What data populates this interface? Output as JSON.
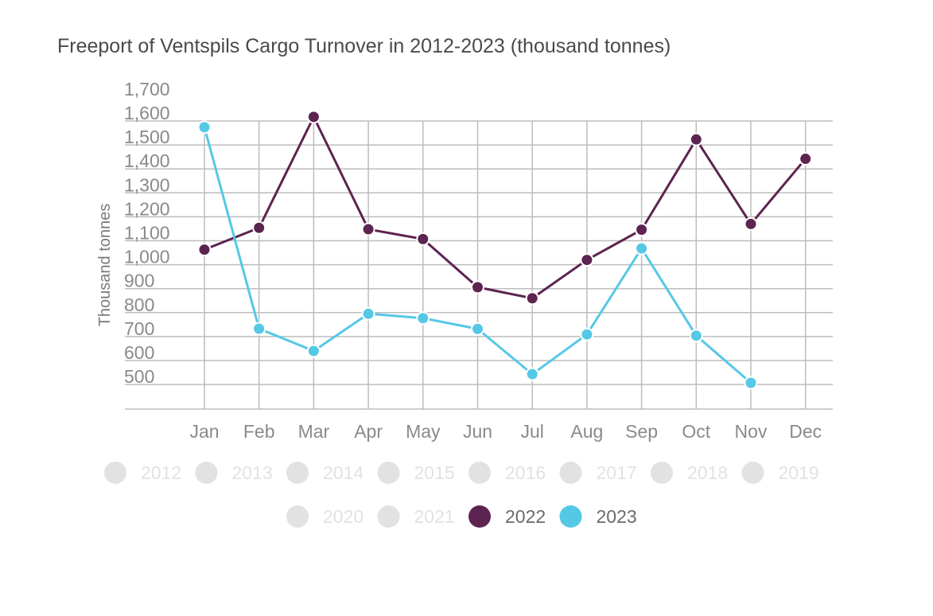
{
  "chart_data": {
    "type": "line",
    "title": "Freeport of Ventspils Cargo Turnover in 2012-2023 (thousand tonnes)",
    "ylabel": "Thousand tonnes",
    "xlabel": "",
    "categories": [
      "Jan",
      "Feb",
      "Mar",
      "Apr",
      "May",
      "Jun",
      "Jul",
      "Aug",
      "Sep",
      "Oct",
      "Nov",
      "Dec"
    ],
    "yticks": [
      "1,700",
      "1,600",
      "1,500",
      "1,400",
      "1,300",
      "1,200",
      "1,100",
      "1,000",
      "900",
      "800",
      "700",
      "600",
      "500"
    ],
    "ylim": [
      430,
      1700
    ],
    "grid": true,
    "legend_position": "bottom",
    "legend": [
      {
        "name": "2012",
        "active": false
      },
      {
        "name": "2013",
        "active": false
      },
      {
        "name": "2014",
        "active": false
      },
      {
        "name": "2015",
        "active": false
      },
      {
        "name": "2016",
        "active": false
      },
      {
        "name": "2017",
        "active": false
      },
      {
        "name": "2018",
        "active": false
      },
      {
        "name": "2019",
        "active": false
      },
      {
        "name": "2020",
        "active": false
      },
      {
        "name": "2021",
        "active": false
      },
      {
        "name": "2022",
        "active": true,
        "color": "#5c2450"
      },
      {
        "name": "2023",
        "active": true,
        "color": "#55c8e6"
      }
    ],
    "series": [
      {
        "name": "2022",
        "color": "#5c2450",
        "values": [
          1063,
          1154,
          1617,
          1148,
          1107,
          906,
          860,
          1020,
          1146,
          1523,
          1170,
          1442
        ]
      },
      {
        "name": "2023",
        "color": "#55c8e6",
        "values": [
          1574,
          733,
          640,
          795,
          777,
          732,
          543,
          709,
          1068,
          704,
          507,
          null
        ]
      }
    ],
    "inactive_color": "#e2e2e2"
  }
}
